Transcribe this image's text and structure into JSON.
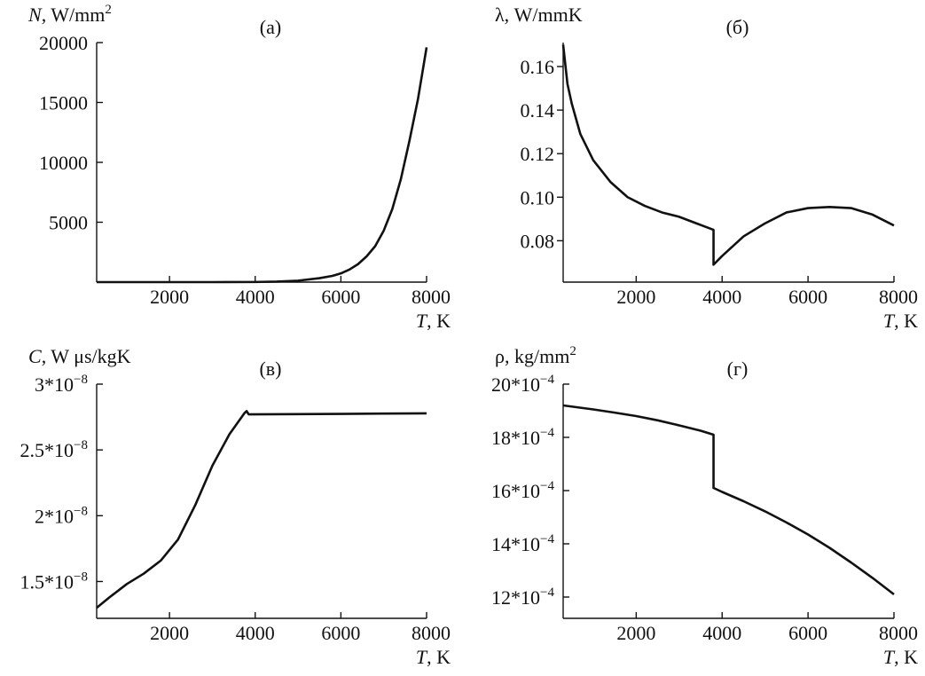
{
  "chart_data": [
    {
      "type": "line",
      "panel_label": "(а)",
      "ylabel": {
        "var": "N",
        "unit": ", W/mm",
        "sup": "2"
      },
      "xlabel": {
        "var": "T",
        "unit": ", K"
      },
      "xlim": [
        300,
        8000
      ],
      "ylim": [
        0,
        20000
      ],
      "xticks": [
        {
          "v": 2000,
          "t": "2000"
        },
        {
          "v": 4000,
          "t": "4000"
        },
        {
          "v": 6000,
          "t": "6000"
        },
        {
          "v": 8000,
          "t": "8000"
        }
      ],
      "yticks": [
        {
          "v": 5000,
          "t": "5000"
        },
        {
          "v": 10000,
          "t": "10000"
        },
        {
          "v": 15000,
          "t": "15000"
        },
        {
          "v": 20000,
          "t": "20000"
        }
      ],
      "series": [
        {
          "x": [
            300,
            1000,
            2000,
            3000,
            4000,
            4500,
            5000,
            5500,
            5800,
            6000,
            6200,
            6400,
            6600,
            6800,
            7000,
            7200,
            7400,
            7600,
            7800,
            8000
          ],
          "y": [
            0,
            0,
            0,
            0,
            10,
            40,
            120,
            330,
            520,
            730,
            1050,
            1500,
            2150,
            3000,
            4300,
            6100,
            8600,
            11800,
            15300,
            19600
          ]
        }
      ]
    },
    {
      "type": "line",
      "panel_label": "(б)",
      "ylabel": {
        "var": "λ",
        "unit": ", W/mmK",
        "sup": ""
      },
      "xlabel": {
        "var": "T",
        "unit": ", K"
      },
      "xlim": [
        300,
        8000
      ],
      "ylim": [
        0.061,
        0.171
      ],
      "xticks": [
        {
          "v": 2000,
          "t": "2000"
        },
        {
          "v": 4000,
          "t": "4000"
        },
        {
          "v": 6000,
          "t": "6000"
        },
        {
          "v": 8000,
          "t": "8000"
        }
      ],
      "yticks": [
        {
          "v": 0.08,
          "t": "0.08"
        },
        {
          "v": 0.1,
          "t": "0.10"
        },
        {
          "v": 0.12,
          "t": "0.12"
        },
        {
          "v": 0.14,
          "t": "0.14"
        },
        {
          "v": 0.16,
          "t": "0.16"
        }
      ],
      "series": [
        {
          "x": [
            300,
            400,
            500,
            700,
            1000,
            1400,
            1800,
            2200,
            2600,
            3000,
            3400,
            3800,
            3800,
            4000,
            4500,
            5000,
            5500,
            6000,
            6500,
            7000,
            7500,
            8000
          ],
          "y": [
            0.17,
            0.152,
            0.143,
            0.129,
            0.117,
            0.107,
            0.1,
            0.096,
            0.093,
            0.091,
            0.088,
            0.085,
            0.069,
            0.073,
            0.082,
            0.088,
            0.093,
            0.095,
            0.0955,
            0.095,
            0.092,
            0.087
          ]
        }
      ]
    },
    {
      "type": "line",
      "panel_label": "(в)",
      "ylabel": {
        "var": "C",
        "unit": ", W μs/kgK",
        "sup": ""
      },
      "xlabel": {
        "var": "T",
        "unit": ", K"
      },
      "xlim": [
        300,
        8000
      ],
      "ylim": [
        1.22e-08,
        3e-08
      ],
      "xticks": [
        {
          "v": 2000,
          "t": "2000"
        },
        {
          "v": 4000,
          "t": "4000"
        },
        {
          "v": 6000,
          "t": "6000"
        },
        {
          "v": 8000,
          "t": "8000"
        }
      ],
      "yticks": [
        {
          "v": 1.5e-08,
          "t": "1.5*10",
          "sup": "−8"
        },
        {
          "v": 2e-08,
          "t": "2*10",
          "sup": "−8"
        },
        {
          "v": 2.5e-08,
          "t": "2.5*10",
          "sup": "−8"
        },
        {
          "v": 3e-08,
          "t": "3*10",
          "sup": "−8"
        }
      ],
      "series": [
        {
          "x": [
            300,
            600,
            1000,
            1400,
            1800,
            2200,
            2600,
            3000,
            3400,
            3750,
            3800,
            3850,
            5000,
            6000,
            7000,
            8000
          ],
          "y": [
            1.3e-08,
            1.38e-08,
            1.48e-08,
            1.56e-08,
            1.66e-08,
            1.82e-08,
            2.08e-08,
            2.38e-08,
            2.62e-08,
            2.78e-08,
            2.795e-08,
            2.77e-08,
            2.772e-08,
            2.774e-08,
            2.776e-08,
            2.778e-08
          ]
        }
      ]
    },
    {
      "type": "line",
      "panel_label": "(г)",
      "ylabel": {
        "var": "ρ",
        "unit": ", kg/mm",
        "sup": "2"
      },
      "xlabel": {
        "var": "T",
        "unit": ", K"
      },
      "xlim": [
        300,
        8000
      ],
      "ylim": [
        0.00112,
        0.002
      ],
      "xticks": [
        {
          "v": 2000,
          "t": "2000"
        },
        {
          "v": 4000,
          "t": "4000"
        },
        {
          "v": 6000,
          "t": "6000"
        },
        {
          "v": 8000,
          "t": "8000"
        }
      ],
      "yticks": [
        {
          "v": 0.0012,
          "t": "12*10",
          "sup": "−4"
        },
        {
          "v": 0.0014,
          "t": "14*10",
          "sup": "−4"
        },
        {
          "v": 0.0016,
          "t": "16*10",
          "sup": "−4"
        },
        {
          "v": 0.0018,
          "t": "18*10",
          "sup": "−4"
        },
        {
          "v": 0.002,
          "t": "20*10",
          "sup": "−4"
        }
      ],
      "series": [
        {
          "x": [
            300,
            1000,
            1500,
            2000,
            2500,
            3000,
            3500,
            3800,
            3800,
            4000,
            4500,
            5000,
            5500,
            6000,
            6500,
            7000,
            7500,
            8000
          ],
          "y": [
            0.00192,
            0.001905,
            0.001893,
            0.00188,
            0.001864,
            0.001845,
            0.001825,
            0.00181,
            0.00161,
            0.001595,
            0.00156,
            0.001522,
            0.00148,
            0.001435,
            0.001385,
            0.00133,
            0.001272,
            0.00121
          ]
        }
      ]
    }
  ]
}
